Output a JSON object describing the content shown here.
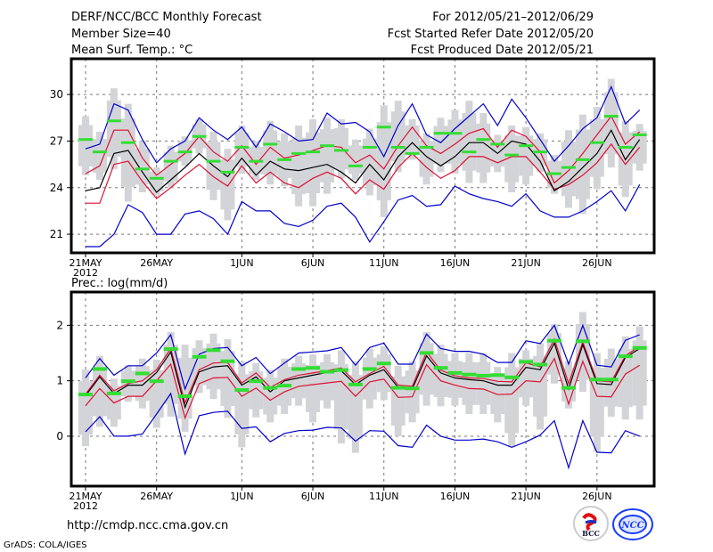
{
  "header": {
    "title": "DERF/NCC/BCC Monthly Forecast",
    "member_size": "Member Size=40",
    "variable_top": "Mean Surf. Temp.: °C",
    "period": "For 2012/05/21–2012/06/29",
    "started_refer": "Fcst Started Refer Date 2012/05/20",
    "produced": "Fcst Produced Date 2012/05/21"
  },
  "footer": {
    "url": "http://cmdp.ncc.cma.gov.cn",
    "credit": "GrADS: COLA/IGES",
    "logo_left": "BCC",
    "logo_right": "NCC"
  },
  "colors": {
    "box": "#d3d4d8",
    "median": "#33dd33",
    "extreme": "#0000cc",
    "spread": "#dd1133",
    "mean": "#000000",
    "grid": "#777777"
  },
  "chart_data": [
    {
      "type": "line",
      "title": "Mean Surf. Temp.: °C",
      "xlabel": "",
      "ylabel": "°C",
      "ylim": [
        19.8,
        32.3
      ],
      "yticks": [
        21,
        24,
        27,
        30
      ],
      "ytick_labels": [
        "21",
        "24",
        "27",
        "30"
      ],
      "xticks": [
        0,
        5,
        11,
        16,
        21,
        26,
        31,
        36
      ],
      "xtick_labels": [
        "21MAY",
        "26MAY",
        "1JUN",
        "6JUN",
        "11JUN",
        "16JUN",
        "21JUN",
        "26JUN"
      ],
      "xtick_sublabel": "2012",
      "grid": true,
      "days": 40,
      "series": [
        {
          "name": "max",
          "color": "extreme",
          "values": [
            26.5,
            26.8,
            29.4,
            29.0,
            27.1,
            25.6,
            26.5,
            27.0,
            28.5,
            27.7,
            27.1,
            27.9,
            26.6,
            28.1,
            27.6,
            27.0,
            27.1,
            28.8,
            28.1,
            28.2,
            27.6,
            26.0,
            28.0,
            29.4,
            27.4,
            26.9,
            27.8,
            28.6,
            29.4,
            28.0,
            29.7,
            28.5,
            27.1,
            25.7,
            26.7,
            27.8,
            28.5,
            30.5,
            28.1,
            29.0
          ]
        },
        {
          "name": "upper",
          "color": "spread",
          "values": [
            24.9,
            25.4,
            27.7,
            27.7,
            25.9,
            24.8,
            25.5,
            26.2,
            27.3,
            26.3,
            25.7,
            26.7,
            25.5,
            26.6,
            25.9,
            26.1,
            26.4,
            26.7,
            26.6,
            25.6,
            26.1,
            25.2,
            26.7,
            27.9,
            26.7,
            26.2,
            26.8,
            27.5,
            27.8,
            26.6,
            27.7,
            27.3,
            26.3,
            24.3,
            25.1,
            26.2,
            27.4,
            28.6,
            26.8,
            27.6
          ]
        },
        {
          "name": "mean",
          "color": "mean",
          "values": [
            23.8,
            24.0,
            26.2,
            26.4,
            25.0,
            23.7,
            24.5,
            25.3,
            26.2,
            25.4,
            24.7,
            25.9,
            24.8,
            25.7,
            25.2,
            25.1,
            25.3,
            25.5,
            25.0,
            24.3,
            25.5,
            24.5,
            26.0,
            26.9,
            26.0,
            25.4,
            26.0,
            26.9,
            26.9,
            26.2,
            27.0,
            26.8,
            25.7,
            23.8,
            24.4,
            25.3,
            26.2,
            27.7,
            25.8,
            27.1
          ]
        },
        {
          "name": "lower",
          "color": "spread",
          "values": [
            23.0,
            23.0,
            25.5,
            25.7,
            24.4,
            23.3,
            24.0,
            24.8,
            25.5,
            24.7,
            24.1,
            25.4,
            24.3,
            25.0,
            24.3,
            24.0,
            24.6,
            25.0,
            24.6,
            23.6,
            24.5,
            23.9,
            25.3,
            26.2,
            25.3,
            24.6,
            25.1,
            26.0,
            26.0,
            25.6,
            26.0,
            26.0,
            25.0,
            23.9,
            24.2,
            24.8,
            25.6,
            26.8,
            25.5,
            26.6
          ]
        },
        {
          "name": "min",
          "color": "extreme",
          "values": [
            20.2,
            20.2,
            21.0,
            22.9,
            22.4,
            21.0,
            21.0,
            22.3,
            22.5,
            22.0,
            21.0,
            23.1,
            22.5,
            22.5,
            21.7,
            21.5,
            21.9,
            22.8,
            23.0,
            22.1,
            20.5,
            21.8,
            23.2,
            23.5,
            22.8,
            22.9,
            24.1,
            23.6,
            23.3,
            23.1,
            22.8,
            23.6,
            22.5,
            22.1,
            22.1,
            22.5,
            23.1,
            23.8,
            22.5,
            24.2
          ]
        },
        {
          "name": "median",
          "color": "median",
          "values": [
            27.1,
            26.3,
            28.3,
            26.9,
            25.2,
            24.6,
            25.7,
            26.3,
            27.3,
            25.7,
            25.0,
            26.6,
            25.7,
            26.8,
            25.8,
            26.2,
            26.3,
            26.7,
            26.4,
            25.4,
            26.6,
            27.9,
            26.6,
            26.2,
            26.6,
            27.5,
            27.5,
            26.3,
            27.1,
            26.8,
            26.1,
            26.7,
            26.3,
            24.9,
            25.3,
            25.8,
            26.9,
            28.6,
            26.6,
            27.4
          ]
        },
        {
          "name": "box_high",
          "color": "box",
          "values": [
            28.6,
            27.6,
            30.4,
            29.4,
            27.0,
            25.3,
            26.7,
            27.3,
            28.4,
            27.6,
            26.5,
            28.0,
            27.0,
            28.3,
            27.5,
            28.0,
            28.4,
            28.5,
            28.4,
            27.1,
            27.8,
            29.3,
            29.6,
            28.4,
            27.5,
            28.5,
            29.0,
            29.6,
            28.8,
            27.4,
            28.0,
            27.9,
            27.5,
            26.1,
            27.7,
            28.7,
            29.2,
            31.0,
            28.3,
            28.1
          ]
        },
        {
          "name": "box_low",
          "color": "box",
          "values": [
            24.8,
            24.5,
            25.2,
            23.1,
            23.7,
            23.5,
            24.0,
            25.4,
            26.2,
            23.2,
            21.9,
            24.9,
            24.5,
            24.2,
            24.1,
            22.8,
            22.8,
            23.6,
            24.6,
            24.5,
            23.5,
            22.1,
            25.0,
            25.8,
            24.2,
            25.0,
            24.9,
            24.3,
            24.3,
            25.0,
            23.7,
            24.2,
            25.0,
            23.6,
            22.7,
            22.3,
            23.9,
            25.3,
            23.4,
            25.1
          ]
        }
      ]
    },
    {
      "type": "line",
      "title": "Prec.: log(mm/d)",
      "xlabel": "",
      "ylabel": "log(mm/d)",
      "ylim": [
        -0.9,
        2.6
      ],
      "yticks": [
        0,
        1,
        2
      ],
      "ytick_labels": [
        "0",
        "1",
        "2"
      ],
      "xticks": [
        0,
        5,
        11,
        16,
        21,
        26,
        31,
        36
      ],
      "xtick_labels": [
        "21MAY",
        "26MAY",
        "1JUN",
        "6JUN",
        "11JUN",
        "16JUN",
        "21JUN",
        "26JUN"
      ],
      "xtick_sublabel": "2012",
      "grid": true,
      "days": 40,
      "series": [
        {
          "name": "max",
          "color": "extreme",
          "values": [
            1.05,
            1.4,
            1.1,
            1.27,
            1.27,
            1.5,
            1.83,
            0.85,
            1.48,
            1.58,
            1.6,
            1.27,
            1.42,
            1.13,
            1.32,
            1.5,
            1.52,
            1.54,
            1.6,
            1.28,
            1.6,
            1.68,
            1.3,
            1.3,
            1.84,
            1.58,
            1.53,
            1.53,
            1.48,
            1.33,
            1.33,
            1.72,
            1.67,
            2.0,
            1.3,
            2.0,
            1.28,
            1.25,
            1.73,
            1.83
          ]
        },
        {
          "name": "upper",
          "color": "spread",
          "values": [
            0.76,
            1.1,
            0.82,
            0.95,
            1.0,
            1.2,
            1.58,
            0.6,
            1.2,
            1.32,
            1.33,
            0.96,
            1.14,
            0.88,
            1.02,
            1.1,
            1.14,
            1.18,
            1.23,
            0.98,
            1.13,
            1.26,
            0.92,
            0.9,
            1.52,
            1.19,
            1.09,
            1.05,
            1.04,
            0.99,
            0.98,
            1.32,
            1.25,
            1.75,
            0.95,
            1.7,
            1.0,
            0.98,
            1.45,
            1.62
          ]
        },
        {
          "name": "mean",
          "color": "mean",
          "values": [
            0.73,
            1.07,
            0.77,
            0.92,
            0.92,
            1.15,
            1.52,
            0.52,
            1.16,
            1.25,
            1.27,
            0.92,
            1.07,
            0.8,
            1.0,
            1.05,
            1.1,
            1.15,
            1.18,
            0.93,
            1.1,
            1.2,
            0.88,
            0.85,
            1.45,
            1.14,
            1.05,
            1.02,
            1.0,
            0.92,
            0.92,
            1.24,
            1.2,
            1.68,
            0.85,
            1.65,
            0.95,
            0.93,
            1.42,
            1.58
          ]
        },
        {
          "name": "lower",
          "color": "spread",
          "values": [
            0.55,
            0.86,
            0.6,
            0.72,
            0.72,
            1.0,
            1.3,
            0.33,
            0.95,
            1.05,
            1.06,
            0.72,
            0.87,
            0.65,
            0.8,
            0.9,
            0.93,
            0.96,
            0.99,
            0.72,
            0.98,
            1.03,
            0.7,
            0.71,
            1.29,
            1.0,
            0.92,
            0.86,
            0.85,
            0.75,
            0.76,
            1.0,
            0.98,
            1.4,
            0.58,
            1.35,
            0.72,
            0.71,
            1.12,
            1.28
          ]
        },
        {
          "name": "min",
          "color": "extreme",
          "values": [
            0.08,
            0.35,
            0.0,
            0.0,
            0.04,
            0.4,
            0.77,
            -0.32,
            0.37,
            0.43,
            0.45,
            0.14,
            0.17,
            -0.1,
            0.05,
            0.1,
            0.11,
            0.16,
            0.15,
            -0.09,
            0.1,
            0.09,
            -0.17,
            -0.2,
            0.2,
            0.0,
            -0.07,
            -0.07,
            -0.05,
            -0.1,
            -0.2,
            -0.1,
            0.02,
            0.28,
            -0.57,
            0.28,
            -0.29,
            -0.3,
            0.1,
            0.0
          ]
        },
        {
          "name": "median",
          "color": "median",
          "values": [
            0.76,
            1.22,
            0.78,
            1.0,
            1.14,
            1.0,
            1.58,
            0.73,
            1.44,
            1.56,
            1.36,
            0.84,
            1.0,
            0.88,
            0.92,
            1.22,
            1.24,
            1.17,
            1.2,
            0.94,
            1.22,
            1.32,
            0.88,
            0.87,
            1.51,
            1.24,
            1.15,
            1.12,
            1.1,
            1.11,
            1.07,
            1.35,
            1.3,
            1.73,
            0.88,
            1.72,
            1.03,
            1.03,
            1.45,
            1.6
          ]
        },
        {
          "name": "box_high",
          "color": "box",
          "values": [
            1.2,
            1.45,
            1.04,
            1.28,
            1.4,
            1.38,
            1.88,
            1.65,
            1.73,
            1.85,
            1.75,
            1.35,
            1.32,
            1.2,
            1.4,
            1.45,
            1.47,
            1.48,
            1.55,
            1.35,
            1.58,
            1.62,
            1.27,
            1.35,
            1.88,
            1.65,
            1.5,
            1.5,
            1.5,
            1.25,
            1.5,
            1.55,
            1.68,
            2.02,
            1.35,
            2.24,
            1.5,
            1.58,
            1.8,
            1.98
          ]
        },
        {
          "name": "box_low",
          "color": "box",
          "values": [
            -0.18,
            0.17,
            0.17,
            0.62,
            0.5,
            0.15,
            0.35,
            0.08,
            0.78,
            0.67,
            0.33,
            -0.2,
            0.34,
            0.25,
            0.4,
            0.55,
            0.25,
            0.5,
            -0.13,
            -0.3,
            0.5,
            0.65,
            0.0,
            0.25,
            0.55,
            0.54,
            0.55,
            0.4,
            0.4,
            0.25,
            -0.2,
            0.55,
            0.12,
            0.95,
            0.5,
            0.8,
            -0.28,
            0.35,
            0.3,
            0.3
          ]
        }
      ]
    }
  ]
}
